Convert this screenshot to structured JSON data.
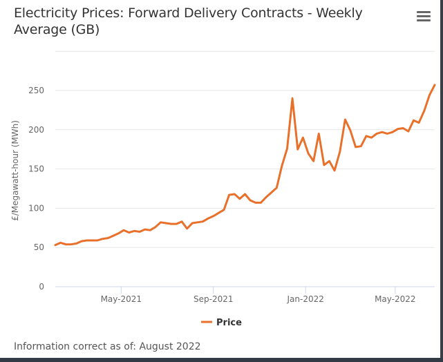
{
  "title": "Electricity Prices: Forward Delivery Contracts - Weekly Average (GB)",
  "menu_icon": "hamburger-menu-icon",
  "footer": "Information correct as of: August 2022",
  "colors": {
    "series": "#e8702a",
    "grid": "#e6e6e6",
    "axis": "#ccd6eb",
    "text": "#666666"
  },
  "chart_data": {
    "type": "line",
    "title": "Electricity Prices: Forward Delivery Contracts - Weekly Average (GB)",
    "xlabel": "",
    "ylabel": "£/Megawatt-hour (MWh)",
    "ylim": [
      0,
      300
    ],
    "yticks": [
      0,
      50,
      100,
      150,
      200,
      250
    ],
    "ytick_labels": [
      "0",
      "50",
      "100",
      "150",
      "200",
      "250"
    ],
    "xtick_labels": [
      "May-2021",
      "Sep-2021",
      "Jan-2022",
      "May-2022"
    ],
    "xtick_week_index": [
      12.5,
      30,
      47.5,
      64.5
    ],
    "grid": true,
    "legend": {
      "position": "bottom-center",
      "entries": [
        "Price"
      ]
    },
    "series": [
      {
        "name": "Price",
        "values": [
          53,
          56,
          54,
          54,
          55,
          58,
          59,
          59,
          59,
          61,
          62,
          65,
          68,
          72,
          69,
          71,
          70,
          73,
          72,
          76,
          82,
          81,
          80,
          80,
          83,
          74,
          81,
          82,
          83,
          87,
          90,
          94,
          98,
          117,
          118,
          112,
          118,
          110,
          107,
          107,
          114,
          120,
          126,
          154,
          176,
          240,
          175,
          190,
          170,
          160,
          195,
          155,
          160,
          148,
          172,
          213,
          199,
          178,
          179,
          192,
          190,
          195,
          197,
          195,
          197,
          201,
          202,
          198,
          212,
          209,
          224,
          244,
          257
        ]
      }
    ]
  }
}
